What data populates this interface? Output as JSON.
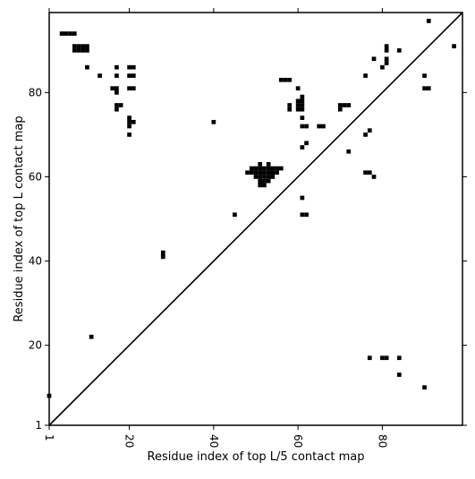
{
  "chart_data": {
    "type": "scatter",
    "title": "",
    "xlabel": "Residue index of top L/5 contact map",
    "ylabel": "Residue index of top L contact map",
    "xlim": [
      1,
      99
    ],
    "ylim": [
      1,
      99
    ],
    "x_ticks": [
      1,
      20,
      40,
      60,
      80
    ],
    "y_ticks": [
      1,
      20,
      40,
      60,
      80
    ],
    "x_tick_labels": [
      "1",
      "20",
      "40",
      "60",
      "80"
    ],
    "y_tick_labels": [
      "1",
      "20",
      "40",
      "60",
      "80"
    ],
    "x_tick_rotation": -90,
    "marker": "square",
    "marker_color": "#000000",
    "grid": false,
    "diagonal_line": true,
    "upper_triangle_points": [
      [
        4,
        94
      ],
      [
        5,
        94
      ],
      [
        6,
        94
      ],
      [
        7,
        94
      ],
      [
        7,
        91
      ],
      [
        8,
        91
      ],
      [
        9,
        91
      ],
      [
        10,
        91
      ],
      [
        7,
        90
      ],
      [
        8,
        90
      ],
      [
        9,
        90
      ],
      [
        10,
        90
      ],
      [
        10,
        86
      ],
      [
        13,
        84
      ],
      [
        16,
        81
      ],
      [
        17,
        81
      ],
      [
        17,
        80
      ],
      [
        17,
        77
      ],
      [
        18,
        77
      ],
      [
        17,
        76
      ],
      [
        17,
        86
      ],
      [
        17,
        84
      ],
      [
        20,
        86
      ],
      [
        21,
        86
      ],
      [
        20,
        84
      ],
      [
        21,
        84
      ],
      [
        20,
        81
      ],
      [
        21,
        81
      ],
      [
        20,
        74
      ],
      [
        20,
        73
      ],
      [
        21,
        73
      ],
      [
        20,
        72
      ],
      [
        20,
        70
      ],
      [
        28,
        42
      ],
      [
        28,
        41
      ],
      [
        40,
        73
      ],
      [
        45,
        51
      ],
      [
        48,
        61
      ],
      [
        49,
        62
      ],
      [
        50,
        62
      ],
      [
        51,
        62
      ],
      [
        52,
        62
      ],
      [
        53,
        62
      ],
      [
        54,
        62
      ],
      [
        55,
        62
      ],
      [
        56,
        62
      ],
      [
        49,
        61
      ],
      [
        50,
        61
      ],
      [
        51,
        61
      ],
      [
        52,
        61
      ],
      [
        53,
        61
      ],
      [
        54,
        61
      ],
      [
        55,
        61
      ],
      [
        50,
        60
      ],
      [
        51,
        60
      ],
      [
        52,
        60
      ],
      [
        53,
        60
      ],
      [
        54,
        60
      ],
      [
        51,
        59
      ],
      [
        52,
        59
      ],
      [
        53,
        59
      ],
      [
        51,
        58
      ],
      [
        52,
        58
      ],
      [
        51,
        63
      ],
      [
        53,
        63
      ],
      [
        56,
        83
      ],
      [
        57,
        83
      ],
      [
        58,
        83
      ],
      [
        58,
        77
      ],
      [
        58,
        76
      ],
      [
        60,
        81
      ],
      [
        60,
        78
      ],
      [
        61,
        78
      ],
      [
        60,
        77
      ],
      [
        61,
        77
      ],
      [
        60,
        76
      ],
      [
        61,
        76
      ],
      [
        61,
        79
      ],
      [
        61,
        74
      ],
      [
        61,
        72
      ],
      [
        62,
        72
      ],
      [
        62,
        68
      ],
      [
        61,
        67
      ],
      [
        61,
        55
      ],
      [
        61,
        51
      ],
      [
        62,
        51
      ],
      [
        65,
        72
      ],
      [
        66,
        72
      ],
      [
        70,
        77
      ],
      [
        71,
        77
      ],
      [
        72,
        77
      ],
      [
        70,
        76
      ],
      [
        72,
        66
      ],
      [
        76,
        84
      ],
      [
        76,
        70
      ],
      [
        77,
        71
      ],
      [
        76,
        61
      ],
      [
        77,
        61
      ],
      [
        78,
        60
      ],
      [
        78,
        88
      ],
      [
        80,
        86
      ],
      [
        81,
        91
      ],
      [
        81,
        90
      ],
      [
        81,
        88
      ],
      [
        81,
        87
      ],
      [
        84,
        90
      ],
      [
        90,
        84
      ],
      [
        90,
        81
      ],
      [
        91,
        81
      ],
      [
        91,
        97
      ],
      [
        97,
        91
      ]
    ],
    "lower_triangle_points": [
      [
        1,
        8
      ],
      [
        11,
        22
      ],
      [
        77,
        17
      ],
      [
        80,
        17
      ],
      [
        81,
        17
      ],
      [
        84,
        17
      ],
      [
        84,
        13
      ],
      [
        90,
        10
      ]
    ]
  }
}
